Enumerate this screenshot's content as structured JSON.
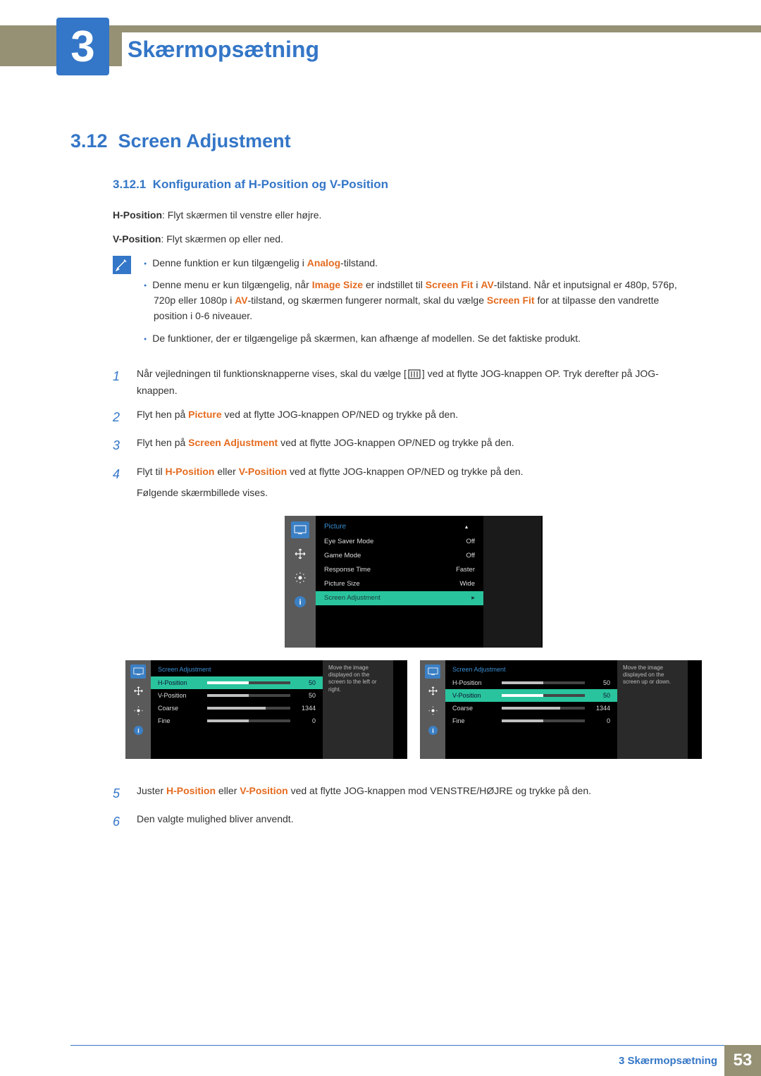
{
  "chapter": {
    "number": "3",
    "title": "Skærmopsætning"
  },
  "section": {
    "number": "3.12",
    "title": "Screen Adjustment"
  },
  "subsection": {
    "number": "3.12.1",
    "title": "Konfiguration af H-Position og V-Position"
  },
  "intro": {
    "h_label": "H-Position",
    "h_text": ": Flyt skærmen til venstre eller højre.",
    "v_label": "V-Position",
    "v_text": ": Flyt skærmen op eller ned."
  },
  "notes": {
    "b1_pre": "Denne funktion er kun tilgængelig i ",
    "b1_em": "Analog",
    "b1_post": "-tilstand.",
    "b2_a": "Denne menu er kun tilgængelig, når ",
    "b2_imgsize": "Image Size",
    "b2_b": " er indstillet til ",
    "b2_screenfit": "Screen Fit",
    "b2_c": " i ",
    "b2_av": "AV",
    "b2_d": "-tilstand. Når et inputsignal er 480p, 576p, 720p eller 1080p i ",
    "b2_av2": "AV",
    "b2_e": "-tilstand, og skærmen fungerer normalt, skal du vælge ",
    "b2_screenfit2": "Screen Fit",
    "b2_f": " for at tilpasse den vandrette position i 0-6 niveauer.",
    "b3": "De funktioner, der er tilgængelige på skærmen, kan afhænge af modellen. Se det faktiske produkt."
  },
  "steps": {
    "s1_a": "Når vejledningen til funktionsknapperne vises, skal du vælge [",
    "s1_b": "] ved at flytte JOG-knappen OP. Tryk derefter på JOG-knappen.",
    "s2_a": "Flyt hen på ",
    "s2_em": "Picture",
    "s2_b": " ved at flytte JOG-knappen OP/NED og trykke på den.",
    "s3_a": "Flyt hen på ",
    "s3_em": "Screen Adjustment",
    "s3_b": " ved at flytte JOG-knappen OP/NED og trykke på den.",
    "s4_a": "Flyt til ",
    "s4_h": "H-Position",
    "s4_or": " eller ",
    "s4_v": "V-Position",
    "s4_b": " ved at flytte JOG-knappen OP/NED og trykke på den.",
    "s4_c": "Følgende skærmbillede vises.",
    "s5_a": "Juster ",
    "s5_h": "H-Position",
    "s5_or": " eller ",
    "s5_v": "V-Position",
    "s5_b": " ved at flytte JOG-knappen mod VENSTRE/HØJRE og trykke på den.",
    "s6": "Den valgte mulighed bliver anvendt."
  },
  "osd_main": {
    "header": "Picture",
    "rows": [
      {
        "label": "Eye Saver Mode",
        "value": "Off"
      },
      {
        "label": "Game Mode",
        "value": "Off"
      },
      {
        "label": "Response Time",
        "value": "Faster"
      },
      {
        "label": "Picture Size",
        "value": "Wide"
      },
      {
        "label": "Screen Adjustment",
        "value": "▸",
        "highlighted": true
      }
    ]
  },
  "osd_small": {
    "header": "Screen Adjustment",
    "rows": [
      {
        "label": "H-Position",
        "value": "50",
        "fill": 50
      },
      {
        "label": "V-Position",
        "value": "50",
        "fill": 50
      },
      {
        "label": "Coarse",
        "value": "1344",
        "fill": 70
      },
      {
        "label": "Fine",
        "value": "0",
        "fill": 50
      }
    ],
    "help_left": "Move the image displayed on the screen to the left or right.",
    "help_right": "Move the image displayed on the screen up or down."
  },
  "footer": {
    "text": "3  Skærmopsætning",
    "page": "53"
  },
  "colors": {
    "accent": "#3476c7",
    "orange": "#e56b1f",
    "beige": "#969175",
    "teal": "#29c49d"
  }
}
